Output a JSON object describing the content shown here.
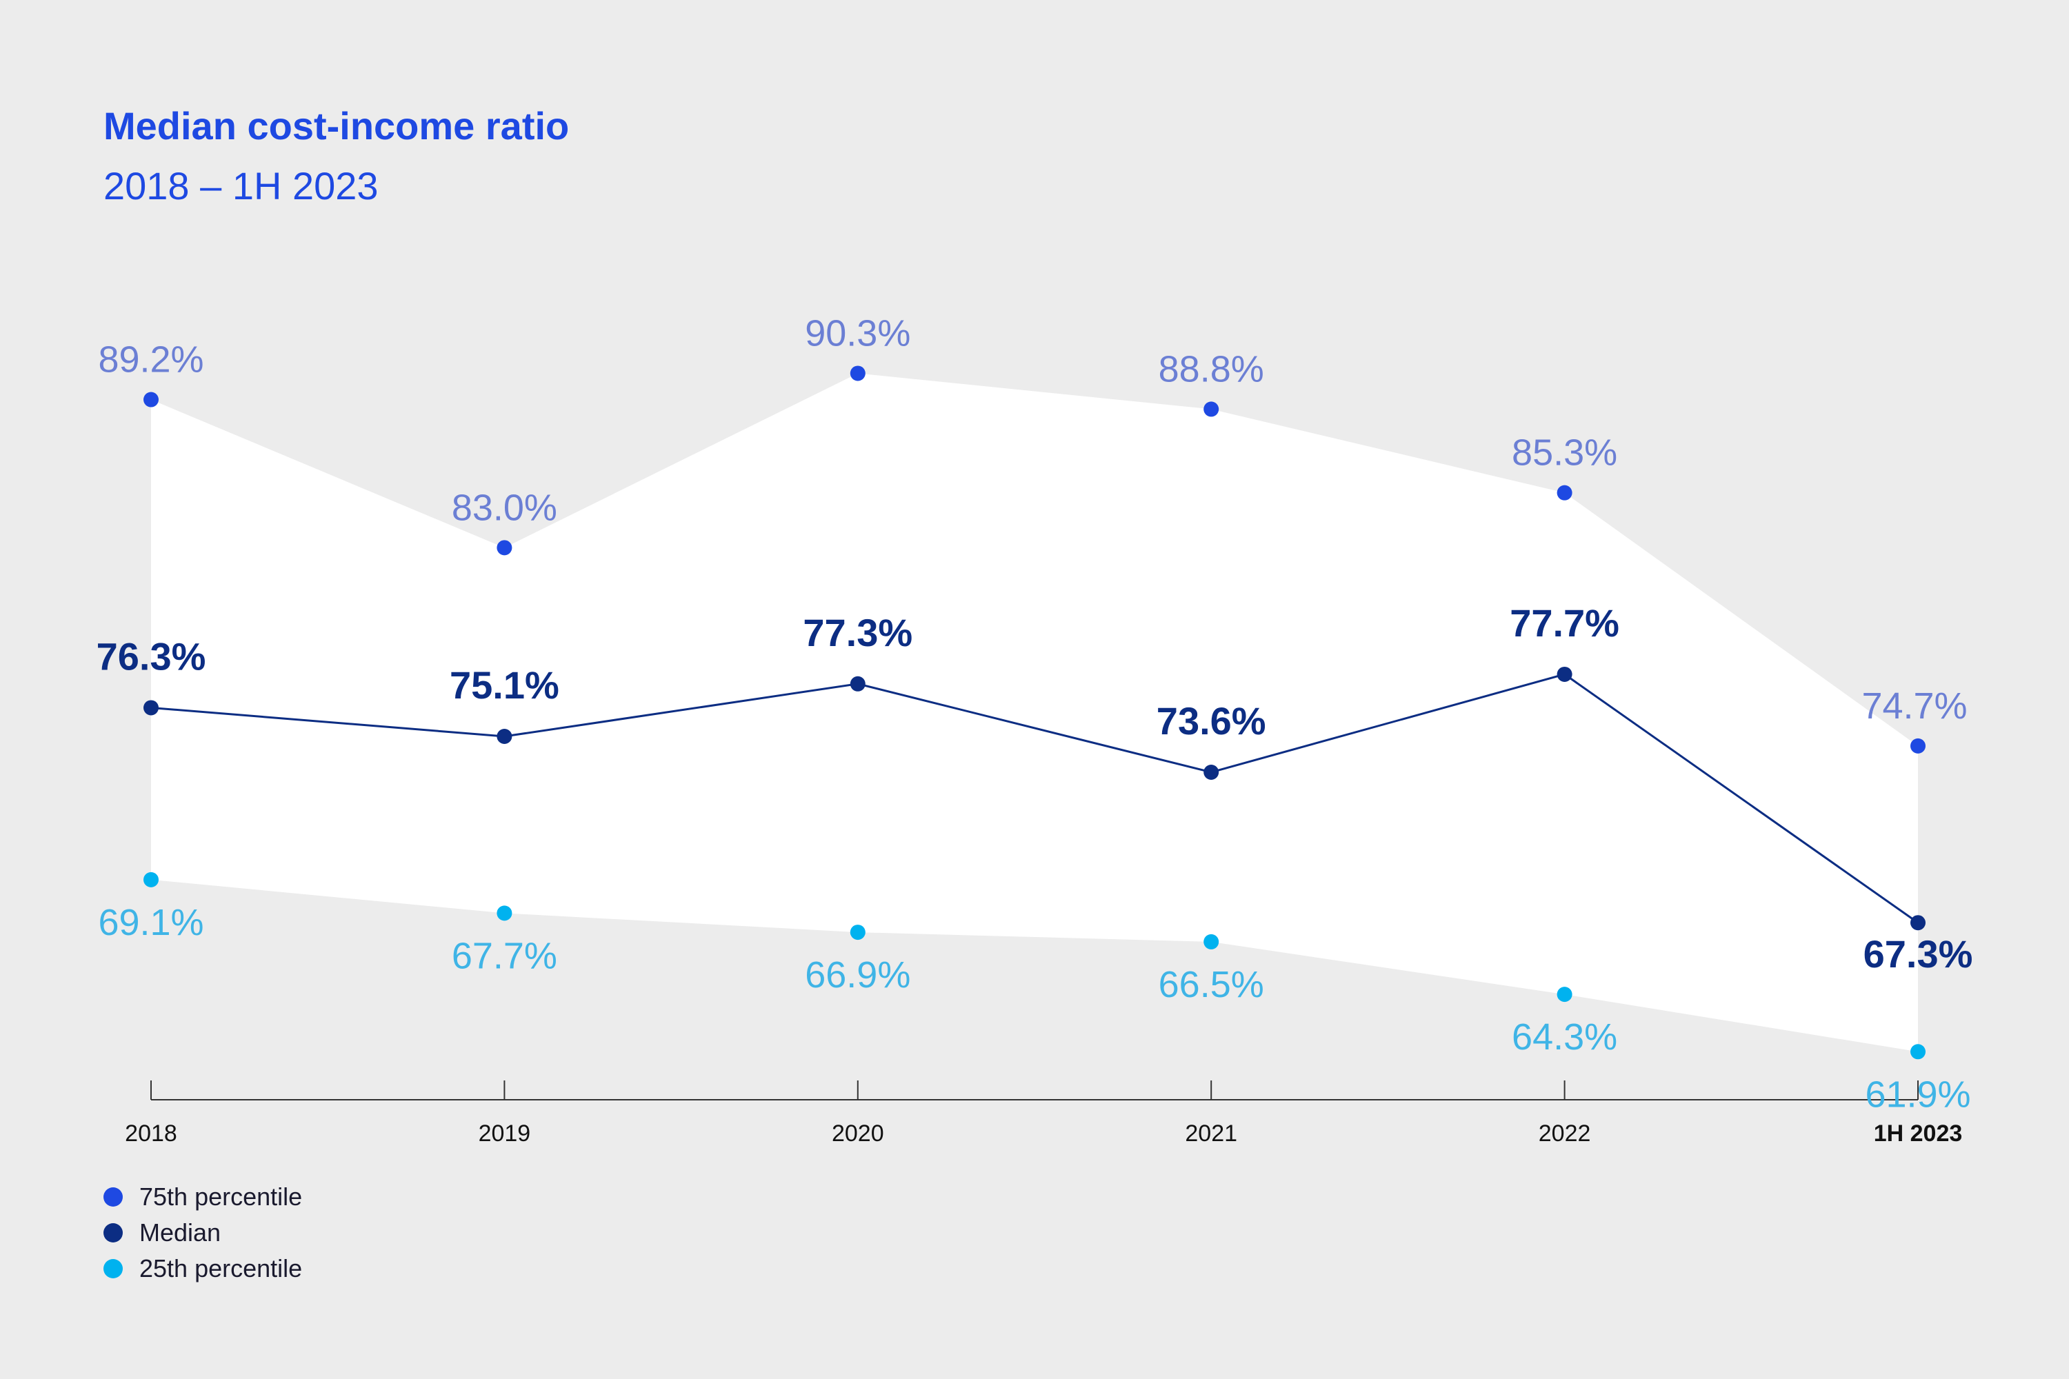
{
  "title": "Median cost-income ratio",
  "subtitle": "2018 – 1H 2023",
  "colors": {
    "p75": "#1e49e2",
    "p75_label": "#6b7fd4",
    "median": "#0c2d83",
    "p25": "#00b2ef",
    "p25_label": "#3fb4e6",
    "band": "#ffffff",
    "axis": "#333333"
  },
  "chart_data": {
    "type": "line",
    "title": "Median cost-income ratio",
    "subtitle": "2018 – 1H 2023",
    "categories": [
      "2018",
      "2019",
      "2020",
      "2021",
      "2022",
      "1H 2023"
    ],
    "highlight_category": "1H 2023",
    "series": [
      {
        "key": "p75",
        "name": "75th percentile",
        "values": [
          89.2,
          83.0,
          90.3,
          88.8,
          85.3,
          74.7
        ],
        "labels": [
          "89.2%",
          "83.0%",
          "90.3%",
          "88.8%",
          "85.3%",
          "74.7%"
        ]
      },
      {
        "key": "median",
        "name": "Median",
        "values": [
          76.3,
          75.1,
          77.3,
          73.6,
          77.7,
          67.3
        ],
        "labels": [
          "76.3%",
          "75.1%",
          "77.3%",
          "73.6%",
          "77.7%",
          "67.3%"
        ]
      },
      {
        "key": "p25",
        "name": "25th percentile",
        "values": [
          69.1,
          67.7,
          66.9,
          66.5,
          64.3,
          61.9
        ],
        "labels": [
          "69.1%",
          "67.7%",
          "66.9%",
          "66.5%",
          "64.3%",
          "61.9%"
        ]
      }
    ],
    "ylim": [
      58.3,
      101.6
    ],
    "unit": "%",
    "grid": false,
    "legend": "bottom-left",
    "xlabel": "",
    "ylabel": ""
  }
}
